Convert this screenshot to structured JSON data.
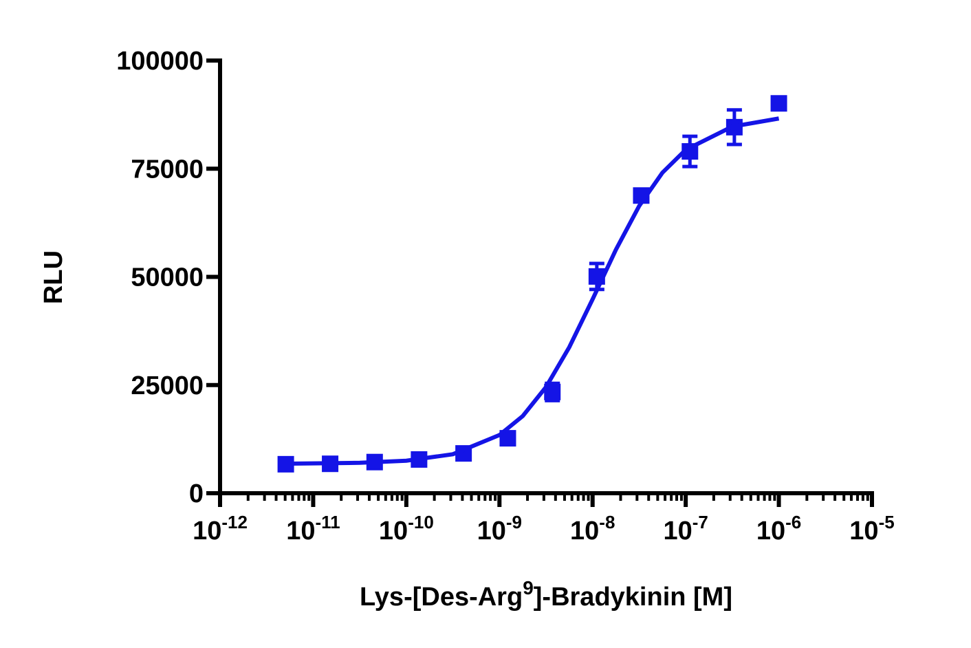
{
  "chart_data": {
    "type": "scatter",
    "x_label": {
      "before": "Lys-[Des-Arg",
      "superscript": "9",
      "after": "]-Bradykinin [M]"
    },
    "y_label": "RLU",
    "x_scale": "log",
    "xlim": [
      1e-12,
      1e-05
    ],
    "xticks": [
      {
        "value": 1e-12,
        "label": "10",
        "superscript": "-12"
      },
      {
        "value": 1e-11,
        "label": "10",
        "superscript": "-11"
      },
      {
        "value": 1e-10,
        "label": "10",
        "superscript": "-10"
      },
      {
        "value": 1e-09,
        "label": "10",
        "superscript": "-9"
      },
      {
        "value": 1e-08,
        "label": "10",
        "superscript": "-8"
      },
      {
        "value": 1e-07,
        "label": "10",
        "superscript": "-7"
      },
      {
        "value": 1e-06,
        "label": "10",
        "superscript": "-6"
      },
      {
        "value": 1e-05,
        "label": "10",
        "superscript": "-5"
      }
    ],
    "ylim": [
      0,
      100000
    ],
    "yticks": [
      0,
      25000,
      50000,
      75000,
      100000
    ],
    "series": [
      {
        "color": "#1414e6",
        "x": [
          5.08e-12,
          1.52e-11,
          4.57e-11,
          1.37e-10,
          4.12e-10,
          1.23e-09,
          3.7e-09,
          1.11e-08,
          3.33e-08,
          1.11e-07,
          3.33e-07,
          1e-06
        ],
        "values": [
          6700,
          6800,
          7200,
          7800,
          9200,
          12700,
          23400,
          50100,
          68800,
          79000,
          84600,
          90100
        ],
        "errors": [
          null,
          null,
          null,
          null,
          null,
          null,
          2000,
          3000,
          null,
          3500,
          4000,
          null
        ]
      },
      {
        "color": "#1414e6",
        "style": "line",
        "x": [
          5.62e-12,
          3.16e-11,
          1e-10,
          3.16e-10,
          1e-09,
          1.78e-09,
          3.16e-09,
          5.62e-09,
          1e-08,
          1.78e-08,
          3.16e-08,
          5.62e-08,
          1e-07,
          3.16e-07,
          1e-06
        ],
        "values": [
          6840,
          7027,
          7513,
          9011,
          13443,
          17839,
          24544,
          33745,
          44819,
          56279,
          66365,
          74080,
          79367,
          84734,
          86606
        ]
      }
    ]
  }
}
